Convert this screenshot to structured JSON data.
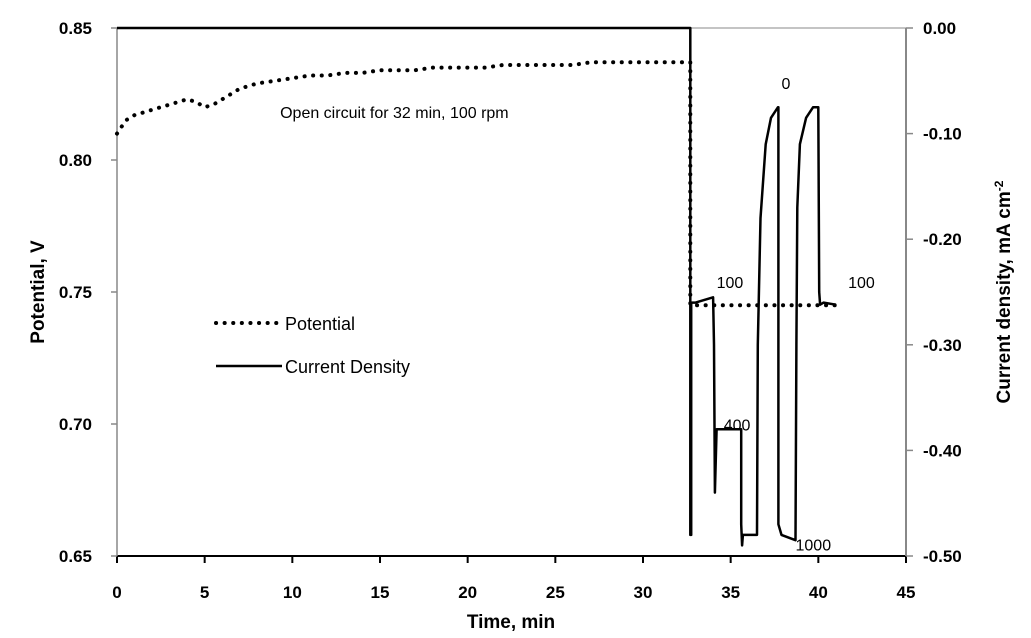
{
  "chart_data": {
    "type": "line",
    "title": "",
    "xlabel": "Time, min",
    "ylabel_left": "Potential, V",
    "ylabel_right_main": "Current density,  mA cm",
    "ylabel_right_sup": "-2",
    "xlim": [
      0,
      45
    ],
    "ylim_left": [
      0.65,
      0.85
    ],
    "ylim_right": [
      -0.5,
      0.0
    ],
    "x_ticks": [
      "0",
      "5",
      "10",
      "15",
      "20",
      "25",
      "30",
      "35",
      "40",
      "45"
    ],
    "y_left_ticks": [
      "0.65",
      "0.70",
      "0.75",
      "0.80",
      "0.85"
    ],
    "y_right_ticks": [
      "-0.50",
      "-0.40",
      "-0.30",
      "-0.20",
      "-0.10",
      "0.00"
    ],
    "grid": false,
    "legend_position": "center-left",
    "annotations": [
      {
        "text": "Open circuit for 32 min, 100 rpm",
        "x": 9.3,
        "y_right": -0.085
      },
      {
        "text": "100",
        "x": 34.2,
        "y_right": -0.246
      },
      {
        "text": "400",
        "x": 34.6,
        "y_right": -0.381
      },
      {
        "text": "0",
        "x": 37.9,
        "y_right": -0.058
      },
      {
        "text": "100",
        "x": 41.7,
        "y_right": -0.246
      },
      {
        "text": "1000",
        "x": 38.7,
        "y_right": -0.495
      }
    ],
    "series": [
      {
        "name": "Potential",
        "axis": "left",
        "style": "dotted",
        "x": [
          0,
          0.5,
          1,
          1.5,
          2,
          2.5,
          3,
          3.5,
          4,
          4.5,
          5,
          5.5,
          6,
          6.5,
          7,
          8,
          9,
          10,
          11,
          12,
          13,
          14,
          15,
          16,
          17,
          18,
          19,
          20,
          21,
          22,
          23,
          24,
          25,
          26,
          27,
          28,
          29,
          30,
          31,
          32,
          32.7,
          32.7,
          33,
          34,
          35,
          36,
          37,
          38,
          39,
          40,
          41
        ],
        "y": [
          0.81,
          0.815,
          0.817,
          0.818,
          0.819,
          0.82,
          0.821,
          0.822,
          0.823,
          0.822,
          0.82,
          0.821,
          0.823,
          0.825,
          0.827,
          0.829,
          0.83,
          0.831,
          0.832,
          0.832,
          0.833,
          0.833,
          0.834,
          0.834,
          0.834,
          0.835,
          0.835,
          0.835,
          0.835,
          0.836,
          0.836,
          0.836,
          0.836,
          0.836,
          0.837,
          0.837,
          0.837,
          0.837,
          0.837,
          0.837,
          0.837,
          0.745,
          0.745,
          0.745,
          0.745,
          0.745,
          0.745,
          0.745,
          0.745,
          0.745,
          0.745
        ]
      },
      {
        "name": "Current Density",
        "axis": "right",
        "style": "solid",
        "x": [
          0,
          5,
          10,
          15,
          20,
          25,
          30,
          32.7,
          32.7,
          32.75,
          32.75,
          33,
          34,
          34.05,
          34.1,
          34.2,
          35.6,
          35.6,
          35.65,
          35.7,
          36.5,
          36.55,
          36.7,
          37,
          37.3,
          37.7,
          37.72,
          37.72,
          37.9,
          38.7,
          38.75,
          38.8,
          38.95,
          39.3,
          39.7,
          40,
          40.05,
          40.1,
          40.3,
          41
        ],
        "y": [
          0.0,
          0.0,
          0.0,
          0.0,
          0.0,
          0.0,
          0.0,
          0.0,
          -0.48,
          -0.48,
          -0.26,
          -0.26,
          -0.255,
          -0.3,
          -0.44,
          -0.38,
          -0.38,
          -0.47,
          -0.49,
          -0.48,
          -0.48,
          -0.3,
          -0.18,
          -0.11,
          -0.085,
          -0.075,
          -0.075,
          -0.47,
          -0.48,
          -0.485,
          -0.3,
          -0.17,
          -0.11,
          -0.085,
          -0.075,
          -0.075,
          -0.25,
          -0.262,
          -0.26,
          -0.262
        ]
      }
    ]
  }
}
